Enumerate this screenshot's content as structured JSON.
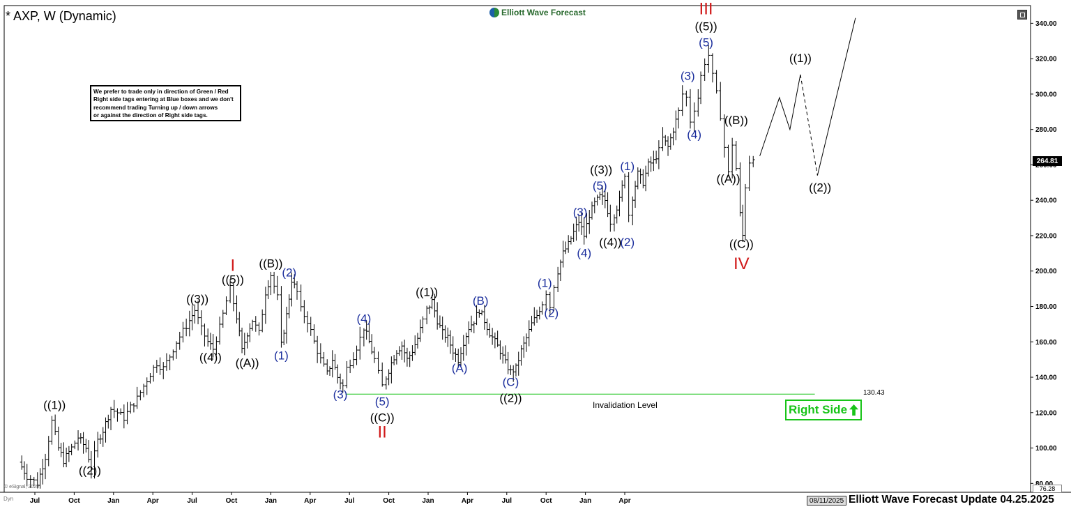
{
  "header": {
    "symbol": "* AXP, W (Dynamic)",
    "brand": "Elliott Wave Forecast",
    "brand_icon": "ewf-logo-icon",
    "expand_icon": "expand-icon"
  },
  "notice": [
    "We prefer to trade only in direction of Green / Red",
    "Right side tags entering at Blue boxes and we don't",
    "recommend trading Turning up / down arrows",
    "or against the direction of Right side tags."
  ],
  "right_side_tag": "Right Side",
  "right_side_icon": "arrow-up-icon",
  "invalidation": {
    "label": "Invalidation Level",
    "value": "130.43"
  },
  "price_tags": {
    "last": "264.81",
    "bottom": "76.28"
  },
  "footer": {
    "date": "08/11/2025",
    "title": "Elliott Wave Forecast Update 04.25.2025",
    "credit": "© eSignal, 2025",
    "tiny": "Dyn"
  },
  "colors": {
    "wave_black": "#000000",
    "wave_blue": "#1a2d9c",
    "wave_red": "#d01818",
    "invalidation": "#18c418"
  },
  "chart_data": {
    "type": "ohlc",
    "interval": "weekly",
    "x_ticks": [
      "Jul",
      "Oct",
      "Jan",
      "Apr",
      "Jul",
      "Oct",
      "Jan",
      "Apr",
      "Jul",
      "Oct",
      "Jan",
      "Apr",
      "Jul",
      "Oct",
      "Jan",
      "Apr"
    ],
    "x_tick_months": [
      0,
      3,
      6,
      9,
      12,
      15,
      18,
      21,
      24,
      27,
      30,
      33,
      36,
      39,
      42,
      45
    ],
    "y_ticks": [
      80,
      100,
      120,
      140,
      160,
      180,
      200,
      220,
      240,
      260,
      280,
      300,
      320,
      340
    ],
    "y_range": [
      75,
      350
    ],
    "x_range_months": [
      -1.3,
      50
    ],
    "path": [
      [
        -1.2,
        92
      ],
      [
        -0.6,
        84
      ],
      [
        0.2,
        80
      ],
      [
        0.8,
        95
      ],
      [
        1.3,
        115
      ],
      [
        1.8,
        100
      ],
      [
        2.2,
        93
      ],
      [
        2.8,
        100
      ],
      [
        3.3,
        106
      ],
      [
        3.9,
        100
      ],
      [
        4.3,
        89
      ],
      [
        4.8,
        104
      ],
      [
        5.2,
        110
      ],
      [
        5.8,
        122
      ],
      [
        6.3,
        120
      ],
      [
        6.8,
        117
      ],
      [
        7.3,
        123
      ],
      [
        7.8,
        128
      ],
      [
        8.3,
        135
      ],
      [
        8.8,
        142
      ],
      [
        9.3,
        148
      ],
      [
        9.8,
        145
      ],
      [
        10.3,
        152
      ],
      [
        10.8,
        160
      ],
      [
        11.3,
        166
      ],
      [
        11.8,
        172
      ],
      [
        12.2,
        178
      ],
      [
        12.7,
        167
      ],
      [
        13.2,
        160
      ],
      [
        13.6,
        156
      ],
      [
        14.1,
        168
      ],
      [
        14.6,
        183
      ],
      [
        14.9,
        190
      ],
      [
        15.4,
        174
      ],
      [
        15.8,
        155
      ],
      [
        16.2,
        165
      ],
      [
        16.6,
        172
      ],
      [
        17.1,
        165
      ],
      [
        17.6,
        188
      ],
      [
        18.0,
        198
      ],
      [
        18.5,
        185
      ],
      [
        18.8,
        158
      ],
      [
        19.2,
        175
      ],
      [
        19.6,
        195
      ],
      [
        20.0,
        188
      ],
      [
        20.3,
        178
      ],
      [
        20.8,
        172
      ],
      [
        21.3,
        160
      ],
      [
        21.8,
        150
      ],
      [
        22.3,
        142
      ],
      [
        22.7,
        150
      ],
      [
        23.1,
        140
      ],
      [
        23.5,
        135
      ],
      [
        23.8,
        145
      ],
      [
        24.3,
        152
      ],
      [
        24.8,
        162
      ],
      [
        25.1,
        168
      ],
      [
        25.5,
        160
      ],
      [
        25.9,
        150
      ],
      [
        26.2,
        142
      ],
      [
        26.5,
        135
      ],
      [
        26.8,
        140
      ],
      [
        27.2,
        148
      ],
      [
        27.6,
        155
      ],
      [
        28.0,
        158
      ],
      [
        28.4,
        150
      ],
      [
        28.8,
        155
      ],
      [
        29.2,
        162
      ],
      [
        29.6,
        172
      ],
      [
        29.9,
        178
      ],
      [
        30.3,
        183
      ],
      [
        30.7,
        172
      ],
      [
        31.1,
        165
      ],
      [
        31.5,
        162
      ],
      [
        31.9,
        155
      ],
      [
        32.3,
        150
      ],
      [
        32.7,
        160
      ],
      [
        33.1,
        168
      ],
      [
        33.5,
        172
      ],
      [
        33.9,
        178
      ],
      [
        34.3,
        172
      ],
      [
        34.7,
        165
      ],
      [
        35.1,
        160
      ],
      [
        35.5,
        155
      ],
      [
        35.9,
        148
      ],
      [
        36.3,
        143
      ],
      [
        36.7,
        145
      ],
      [
        37.1,
        155
      ],
      [
        37.5,
        162
      ],
      [
        37.9,
        170
      ],
      [
        38.3,
        175
      ],
      [
        38.7,
        182
      ],
      [
        39.0,
        188
      ],
      [
        39.3,
        180
      ],
      [
        39.6,
        192
      ],
      [
        39.9,
        200
      ],
      [
        40.3,
        210
      ],
      [
        40.7,
        215
      ],
      [
        41.1,
        222
      ],
      [
        41.5,
        228
      ],
      [
        41.9,
        220
      ],
      [
        42.3,
        232
      ],
      [
        42.7,
        238
      ],
      [
        43.1,
        242
      ],
      [
        43.5,
        240
      ],
      [
        43.9,
        228
      ],
      [
        44.2,
        232
      ],
      [
        44.6,
        240
      ],
      [
        45.0,
        255
      ],
      [
        45.3,
        232
      ],
      [
        45.6,
        242
      ],
      [
        46.0,
        255
      ],
      [
        46.4,
        250
      ],
      [
        46.8,
        260
      ],
      [
        47.2,
        262
      ],
      [
        47.6,
        268
      ],
      [
        47.9,
        275
      ],
      [
        48.3,
        270
      ],
      [
        48.7,
        280
      ],
      [
        49.1,
        290
      ],
      [
        49.4,
        300
      ],
      [
        49.7,
        298
      ],
      [
        50.0,
        285
      ],
      [
        50.3,
        292
      ],
      [
        50.6,
        298
      ],
      [
        50.8,
        310
      ],
      [
        51.1,
        318
      ],
      [
        51.4,
        322
      ],
      [
        51.7,
        310
      ],
      [
        52.0,
        300
      ],
      [
        52.3,
        288
      ],
      [
        52.6,
        270
      ],
      [
        52.9,
        255
      ],
      [
        53.2,
        272
      ],
      [
        53.5,
        258
      ],
      [
        53.8,
        232
      ],
      [
        54.0,
        220
      ],
      [
        54.2,
        248
      ],
      [
        54.5,
        262
      ],
      [
        54.8,
        264.81
      ]
    ],
    "projection_solid_1": [
      [
        55.3,
        265
      ],
      [
        56.8,
        298
      ],
      [
        57.6,
        280
      ],
      [
        58.4,
        311
      ]
    ],
    "projection_dashed": [
      [
        58.4,
        311
      ],
      [
        59.7,
        254
      ]
    ],
    "projection_solid_2": [
      [
        59.7,
        254
      ],
      [
        62.6,
        343
      ]
    ],
    "invalidation_line": {
      "value": 130.43,
      "from_month": 23.7,
      "to_month": 59.5
    },
    "labels": [
      {
        "text": "((1))",
        "m": 1.5,
        "v": 122,
        "color": "black"
      },
      {
        "text": "((2))",
        "m": 4.2,
        "v": 85,
        "color": "black"
      },
      {
        "text": "((3))",
        "m": 12.4,
        "v": 182,
        "color": "black"
      },
      {
        "text": "((4))",
        "m": 13.4,
        "v": 149,
        "color": "black"
      },
      {
        "text": "((5))",
        "m": 15.1,
        "v": 193,
        "color": "black"
      },
      {
        "text": "I",
        "m": 15.1,
        "v": 200,
        "color": "red"
      },
      {
        "text": "((A))",
        "m": 16.2,
        "v": 146,
        "color": "black"
      },
      {
        "text": "((B))",
        "m": 18.0,
        "v": 202,
        "color": "black"
      },
      {
        "text": "(1)",
        "m": 18.8,
        "v": 150,
        "color": "blue"
      },
      {
        "text": "(2)",
        "m": 19.4,
        "v": 197,
        "color": "blue"
      },
      {
        "text": "(3)",
        "m": 23.3,
        "v": 128,
        "color": "blue"
      },
      {
        "text": "(4)",
        "m": 25.1,
        "v": 171,
        "color": "blue"
      },
      {
        "text": "(5)",
        "m": 26.5,
        "v": 124,
        "color": "blue"
      },
      {
        "text": "((C))",
        "m": 26.5,
        "v": 115,
        "color": "black"
      },
      {
        "text": "II",
        "m": 26.5,
        "v": 106,
        "color": "red"
      },
      {
        "text": "((1))",
        "m": 29.9,
        "v": 186,
        "color": "black"
      },
      {
        "text": "(A)",
        "m": 32.4,
        "v": 143,
        "color": "blue"
      },
      {
        "text": "(B)",
        "m": 34.0,
        "v": 181,
        "color": "blue"
      },
      {
        "text": "(C)",
        "m": 36.3,
        "v": 135,
        "color": "blue"
      },
      {
        "text": "((2))",
        "m": 36.3,
        "v": 126,
        "color": "black"
      },
      {
        "text": "(1)",
        "m": 38.9,
        "v": 191,
        "color": "blue"
      },
      {
        "text": "(2)",
        "m": 39.4,
        "v": 174,
        "color": "blue"
      },
      {
        "text": "(3)",
        "m": 41.6,
        "v": 231,
        "color": "blue"
      },
      {
        "text": "(4)",
        "m": 41.9,
        "v": 208,
        "color": "blue"
      },
      {
        "text": "((3))",
        "m": 43.2,
        "v": 255,
        "color": "black"
      },
      {
        "text": "(5)",
        "m": 43.1,
        "v": 246,
        "color": "blue"
      },
      {
        "text": "((4))",
        "m": 43.9,
        "v": 214,
        "color": "black"
      },
      {
        "text": "(1)",
        "m": 45.2,
        "v": 257,
        "color": "blue"
      },
      {
        "text": "(2)",
        "m": 45.2,
        "v": 214,
        "color": "blue"
      },
      {
        "text": "(3)",
        "m": 49.8,
        "v": 308,
        "color": "blue"
      },
      {
        "text": "(4)",
        "m": 50.3,
        "v": 275,
        "color": "blue"
      },
      {
        "text": "((5))",
        "m": 51.2,
        "v": 336,
        "color": "black"
      },
      {
        "text": "(5)",
        "m": 51.2,
        "v": 327,
        "color": "blue"
      },
      {
        "text": "III",
        "m": 51.2,
        "v": 345,
        "color": "red"
      },
      {
        "text": "((B))",
        "m": 53.5,
        "v": 283,
        "color": "black"
      },
      {
        "text": "((A))",
        "m": 52.9,
        "v": 250,
        "color": "black"
      },
      {
        "text": "((C))",
        "m": 53.9,
        "v": 213,
        "color": "black"
      },
      {
        "text": "IV",
        "m": 53.9,
        "v": 201,
        "color": "red"
      },
      {
        "text": "((1))",
        "m": 58.4,
        "v": 318,
        "color": "black"
      },
      {
        "text": "((2))",
        "m": 59.9,
        "v": 245,
        "color": "black"
      }
    ]
  }
}
